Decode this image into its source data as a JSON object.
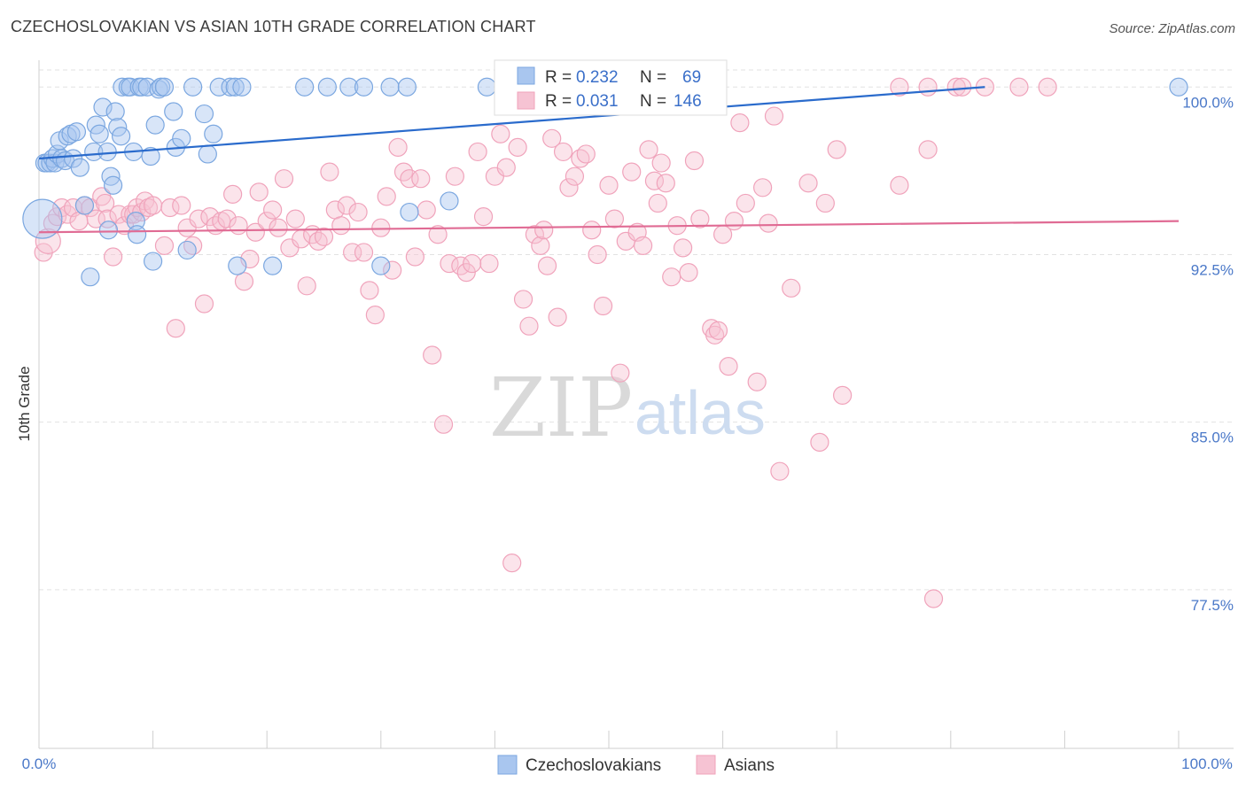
{
  "title": "CZECHOSLOVAKIAN VS ASIAN 10TH GRADE CORRELATION CHART",
  "source": "Source: ZipAtlas.com",
  "watermark": {
    "part1": "ZIP",
    "part2": "atlas"
  },
  "chart_data": {
    "type": "scatter",
    "xlabel": "",
    "ylabel": "10th Grade",
    "xlim": [
      0,
      100
    ],
    "ylim": [
      70.4,
      101.2
    ],
    "x_ticks": [
      "0.0%",
      "100.0%"
    ],
    "y_ticks": [
      {
        "value": 100.0,
        "label": "100.0%"
      },
      {
        "value": 92.5,
        "label": "92.5%"
      },
      {
        "value": 85.0,
        "label": "85.0%"
      },
      {
        "value": 77.5,
        "label": "77.5%"
      }
    ],
    "grid": "horizontal dashed",
    "legend_position": "top-center",
    "stats": [
      {
        "r_label": "R =",
        "r_value": "0.232",
        "n_label": "N =",
        "n_value": "69"
      },
      {
        "r_label": "R =",
        "r_value": "0.031",
        "n_label": "N =",
        "n_value": "146"
      }
    ],
    "series": [
      {
        "name": "Czechoslovakians",
        "color": "#7ba7e0",
        "fill": "#a9c6ef",
        "trend_color": "#2a6bcc",
        "trend": [
          [
            0,
            96.8
          ],
          [
            83,
            100.0
          ]
        ],
        "points": [
          [
            0.3,
            94.1
          ],
          [
            0.5,
            96.6
          ],
          [
            0.7,
            96.6
          ],
          [
            1.0,
            96.6
          ],
          [
            1.2,
            96.8
          ],
          [
            1.4,
            96.6
          ],
          [
            1.6,
            97.0
          ],
          [
            1.8,
            97.6
          ],
          [
            2.0,
            96.8
          ],
          [
            2.3,
            96.7
          ],
          [
            2.5,
            97.8
          ],
          [
            2.8,
            97.9
          ],
          [
            3.0,
            96.8
          ],
          [
            3.3,
            98.0
          ],
          [
            3.6,
            96.4
          ],
          [
            4.0,
            94.7
          ],
          [
            4.5,
            91.5
          ],
          [
            4.8,
            97.1
          ],
          [
            5.0,
            98.3
          ],
          [
            5.3,
            97.9
          ],
          [
            5.6,
            99.1
          ],
          [
            6.0,
            97.1
          ],
          [
            6.1,
            93.6
          ],
          [
            6.3,
            96.0
          ],
          [
            6.5,
            95.6
          ],
          [
            6.7,
            98.9
          ],
          [
            6.9,
            98.2
          ],
          [
            7.2,
            97.8
          ],
          [
            7.3,
            100.0
          ],
          [
            7.8,
            100.0
          ],
          [
            8.0,
            100.0
          ],
          [
            8.3,
            97.1
          ],
          [
            8.5,
            94.0
          ],
          [
            8.6,
            93.4
          ],
          [
            8.8,
            100.0
          ],
          [
            9.0,
            100.0
          ],
          [
            9.5,
            100.0
          ],
          [
            9.8,
            96.9
          ],
          [
            10.0,
            92.2
          ],
          [
            10.2,
            98.3
          ],
          [
            10.5,
            99.9
          ],
          [
            10.7,
            100.0
          ],
          [
            11.0,
            100.0
          ],
          [
            11.8,
            98.9
          ],
          [
            12.0,
            97.3
          ],
          [
            12.5,
            97.7
          ],
          [
            13.0,
            92.7
          ],
          [
            13.5,
            100.0
          ],
          [
            14.5,
            98.8
          ],
          [
            14.8,
            97.0
          ],
          [
            15.3,
            97.9
          ],
          [
            15.8,
            100.0
          ],
          [
            16.8,
            100.0
          ],
          [
            17.2,
            100.0
          ],
          [
            17.4,
            92.0
          ],
          [
            17.8,
            100.0
          ],
          [
            20.5,
            92.0
          ],
          [
            23.3,
            100.0
          ],
          [
            25.3,
            100.0
          ],
          [
            27.2,
            100.0
          ],
          [
            28.5,
            100.0
          ],
          [
            30.0,
            92.0
          ],
          [
            30.8,
            100.0
          ],
          [
            32.3,
            100.0
          ],
          [
            32.5,
            94.4
          ],
          [
            36.0,
            94.9
          ],
          [
            39.3,
            100.0
          ],
          [
            50.0,
            100.0
          ],
          [
            100.0,
            100.0
          ]
        ],
        "radii": [
          22,
          10,
          10,
          10,
          10,
          10,
          10,
          10,
          10,
          10,
          10,
          10,
          10,
          10,
          10,
          10,
          10,
          10,
          10,
          10,
          10,
          10,
          10,
          10,
          10,
          10,
          10,
          10,
          10,
          10,
          10,
          10,
          10,
          10,
          10,
          10,
          10,
          10,
          10,
          10,
          10,
          10,
          10,
          10,
          10,
          10,
          10,
          10,
          10,
          10,
          10,
          10,
          10,
          10,
          10,
          10,
          10,
          10,
          10,
          10,
          10,
          10,
          10,
          10,
          10,
          10,
          10,
          10,
          10
        ]
      },
      {
        "name": "Asians",
        "color": "#f0a3bb",
        "fill": "#f6c3d3",
        "trend_color": "#e06b94",
        "trend": [
          [
            0,
            93.5
          ],
          [
            100,
            94.0
          ]
        ],
        "points": [
          [
            0.4,
            92.6
          ],
          [
            0.8,
            93.1
          ],
          [
            1.2,
            93.9
          ],
          [
            1.6,
            94.2
          ],
          [
            2.0,
            94.6
          ],
          [
            2.5,
            94.3
          ],
          [
            3.0,
            94.6
          ],
          [
            3.5,
            94.0
          ],
          [
            4.0,
            94.7
          ],
          [
            4.5,
            94.6
          ],
          [
            5.0,
            94.1
          ],
          [
            5.5,
            95.1
          ],
          [
            5.8,
            94.8
          ],
          [
            6.0,
            94.1
          ],
          [
            6.5,
            92.4
          ],
          [
            7.0,
            94.3
          ],
          [
            7.5,
            93.8
          ],
          [
            8.0,
            94.3
          ],
          [
            8.3,
            94.3
          ],
          [
            8.6,
            94.6
          ],
          [
            9.0,
            94.4
          ],
          [
            9.3,
            94.9
          ],
          [
            9.6,
            94.6
          ],
          [
            10.0,
            94.7
          ],
          [
            11.0,
            92.9
          ],
          [
            11.5,
            94.6
          ],
          [
            12.0,
            89.2
          ],
          [
            12.5,
            94.7
          ],
          [
            13.0,
            93.7
          ],
          [
            13.5,
            92.9
          ],
          [
            14.0,
            94.1
          ],
          [
            14.5,
            90.3
          ],
          [
            15.0,
            94.2
          ],
          [
            15.5,
            93.8
          ],
          [
            16.0,
            94.0
          ],
          [
            16.5,
            94.1
          ],
          [
            17.0,
            95.2
          ],
          [
            17.5,
            93.8
          ],
          [
            18.0,
            91.3
          ],
          [
            18.5,
            92.3
          ],
          [
            19.0,
            93.5
          ],
          [
            19.3,
            95.3
          ],
          [
            20.0,
            94.0
          ],
          [
            20.5,
            94.5
          ],
          [
            21.0,
            93.7
          ],
          [
            21.5,
            95.9
          ],
          [
            22.0,
            92.8
          ],
          [
            22.5,
            94.1
          ],
          [
            23.0,
            93.2
          ],
          [
            23.5,
            91.1
          ],
          [
            24.0,
            93.4
          ],
          [
            24.5,
            93.1
          ],
          [
            25.0,
            93.3
          ],
          [
            25.5,
            96.2
          ],
          [
            26.0,
            94.5
          ],
          [
            26.5,
            93.8
          ],
          [
            27.0,
            94.7
          ],
          [
            27.5,
            92.6
          ],
          [
            28.0,
            94.4
          ],
          [
            28.5,
            92.6
          ],
          [
            29.0,
            90.9
          ],
          [
            29.5,
            89.8
          ],
          [
            30.0,
            93.7
          ],
          [
            30.5,
            95.1
          ],
          [
            31.0,
            91.8
          ],
          [
            31.5,
            97.3
          ],
          [
            32.0,
            96.2
          ],
          [
            32.5,
            95.9
          ],
          [
            33.0,
            92.4
          ],
          [
            33.5,
            95.9
          ],
          [
            34.0,
            94.5
          ],
          [
            34.5,
            88.0
          ],
          [
            35.0,
            93.4
          ],
          [
            35.5,
            84.9
          ],
          [
            36.0,
            92.1
          ],
          [
            36.5,
            96.0
          ],
          [
            37.0,
            92.0
          ],
          [
            37.5,
            91.7
          ],
          [
            38.0,
            92.1
          ],
          [
            38.5,
            97.1
          ],
          [
            39.0,
            94.2
          ],
          [
            39.5,
            92.1
          ],
          [
            40.0,
            96.0
          ],
          [
            40.5,
            97.9
          ],
          [
            41.0,
            96.4
          ],
          [
            41.5,
            78.7
          ],
          [
            42.0,
            97.3
          ],
          [
            42.5,
            90.5
          ],
          [
            43.0,
            89.3
          ],
          [
            43.5,
            93.4
          ],
          [
            44.0,
            92.9
          ],
          [
            44.3,
            93.6
          ],
          [
            44.6,
            92.0
          ],
          [
            45.0,
            97.7
          ],
          [
            45.5,
            89.7
          ],
          [
            46.0,
            97.1
          ],
          [
            46.5,
            95.5
          ],
          [
            47.0,
            96.0
          ],
          [
            47.5,
            96.8
          ],
          [
            48.0,
            97.0
          ],
          [
            48.5,
            93.6
          ],
          [
            49.0,
            92.5
          ],
          [
            49.5,
            90.2
          ],
          [
            50.0,
            95.6
          ],
          [
            50.5,
            94.1
          ],
          [
            51.0,
            87.2
          ],
          [
            51.5,
            93.1
          ],
          [
            52.0,
            96.2
          ],
          [
            52.5,
            93.5
          ],
          [
            53.0,
            92.9
          ],
          [
            53.5,
            97.2
          ],
          [
            54.0,
            95.8
          ],
          [
            54.3,
            94.8
          ],
          [
            54.6,
            96.6
          ],
          [
            55.0,
            95.7
          ],
          [
            55.5,
            91.5
          ],
          [
            56.0,
            93.8
          ],
          [
            56.5,
            92.8
          ],
          [
            57.0,
            91.7
          ],
          [
            57.5,
            96.7
          ],
          [
            58.0,
            94.1
          ],
          [
            59.0,
            89.2
          ],
          [
            59.3,
            88.9
          ],
          [
            59.6,
            89.1
          ],
          [
            60.0,
            93.4
          ],
          [
            60.5,
            87.5
          ],
          [
            61.0,
            94.0
          ],
          [
            61.5,
            98.4
          ],
          [
            62.0,
            94.8
          ],
          [
            63.0,
            86.8
          ],
          [
            63.5,
            95.5
          ],
          [
            64.0,
            93.9
          ],
          [
            64.5,
            98.7
          ],
          [
            65.0,
            82.8
          ],
          [
            66.0,
            91.0
          ],
          [
            67.5,
            95.7
          ],
          [
            68.5,
            84.1
          ],
          [
            69.0,
            94.8
          ],
          [
            70.0,
            97.2
          ],
          [
            70.5,
            86.2
          ],
          [
            75.5,
            95.6
          ],
          [
            78.0,
            97.2
          ],
          [
            78.5,
            77.1
          ],
          [
            88.5,
            100.0
          ]
        ],
        "radii": [
          10,
          14,
          10,
          10,
          10,
          10,
          10,
          10,
          10,
          10,
          10,
          10,
          10,
          10,
          10,
          10,
          10,
          10,
          10,
          10,
          10,
          10,
          10,
          10,
          10,
          10,
          10,
          10,
          10,
          10,
          10,
          10,
          10,
          10,
          10,
          10,
          10,
          10,
          10,
          10,
          10,
          10,
          10,
          10,
          10,
          10,
          10,
          10,
          10,
          10,
          10,
          10,
          10,
          10,
          10,
          10,
          10,
          10,
          10,
          10,
          10,
          10,
          10,
          10,
          10,
          10,
          10,
          10,
          10,
          10,
          10,
          10,
          10,
          10,
          10,
          10,
          10,
          10,
          10,
          10,
          10,
          10,
          10,
          10,
          10,
          10,
          10,
          10,
          10,
          10,
          10,
          10,
          10,
          10,
          10,
          10,
          10,
          10,
          10,
          10,
          10,
          10,
          10,
          10,
          10,
          10,
          10,
          10,
          10,
          10,
          10,
          10,
          10,
          10,
          10,
          10,
          10,
          10,
          10,
          10,
          10,
          10,
          10,
          10,
          10,
          10,
          10,
          10,
          10,
          10,
          10,
          10,
          10,
          10,
          10,
          10,
          10,
          10,
          10,
          10,
          10,
          10,
          10,
          10,
          10,
          10
        ],
        "top_cluster": [
          [
            75.5,
            100.0
          ],
          [
            78.0,
            100.0
          ],
          [
            80.5,
            100.0
          ],
          [
            81.0,
            100.0
          ],
          [
            83.0,
            100.0
          ],
          [
            86.0,
            100.0
          ]
        ]
      }
    ]
  }
}
